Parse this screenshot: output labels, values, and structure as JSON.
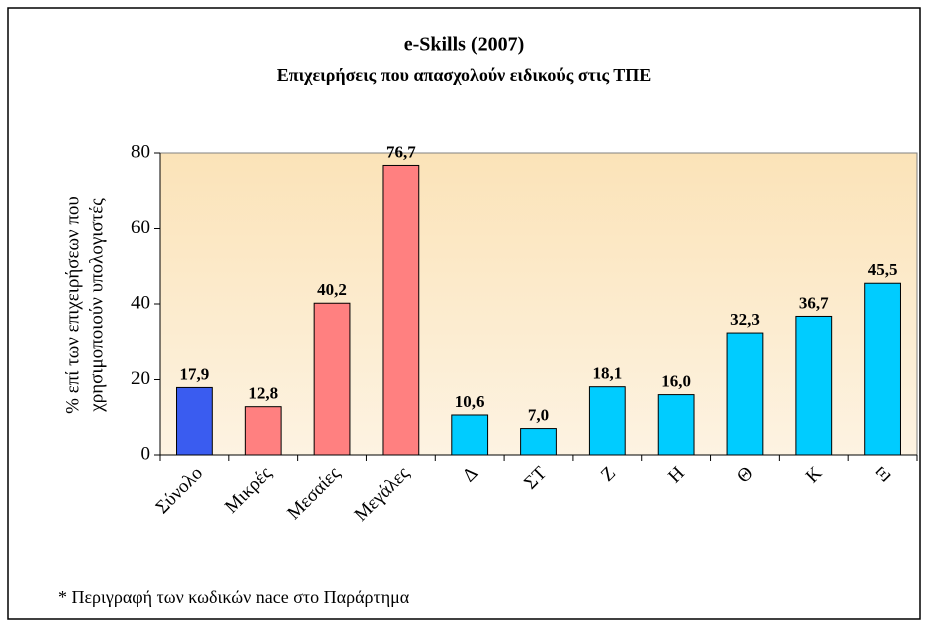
{
  "chart_data": {
    "type": "bar",
    "title": "e-Skills  (2007)",
    "subtitle": "Επιχειρήσεις που απασχολούν ειδικούς στις ΤΠΕ",
    "ylabel": [
      "% επί των επιχειρήσεων που",
      "χρησιμοποιούν υπολογιστές"
    ],
    "categories": [
      "Σύνολο",
      "Μικρές",
      "Μεσαίες",
      "Μεγάλες",
      "Δ",
      "ΣΤ",
      "Ζ",
      "Η",
      "Θ",
      "Κ",
      "Ξ"
    ],
    "values": [
      17.9,
      12.8,
      40.2,
      76.7,
      10.6,
      7.0,
      18.1,
      16.0,
      32.3,
      36.7,
      45.5
    ],
    "value_labels": [
      "17,9",
      "12,8",
      "40,2",
      "76,7",
      "10,6",
      "7,0",
      "18,1",
      "16,0",
      "32,3",
      "36,7",
      "45,5"
    ],
    "colors": [
      "#3a5cf0",
      "#ff8080",
      "#ff8080",
      "#ff8080",
      "#00ccff",
      "#00ccff",
      "#00ccff",
      "#00ccff",
      "#00ccff",
      "#00ccff",
      "#00ccff"
    ],
    "ylim": [
      0,
      80
    ],
    "yticks": [
      0,
      20,
      40,
      60,
      80
    ],
    "grid": false,
    "footnote": "* Περιγραφή των κωδικών nace στο Παράρτημα"
  }
}
